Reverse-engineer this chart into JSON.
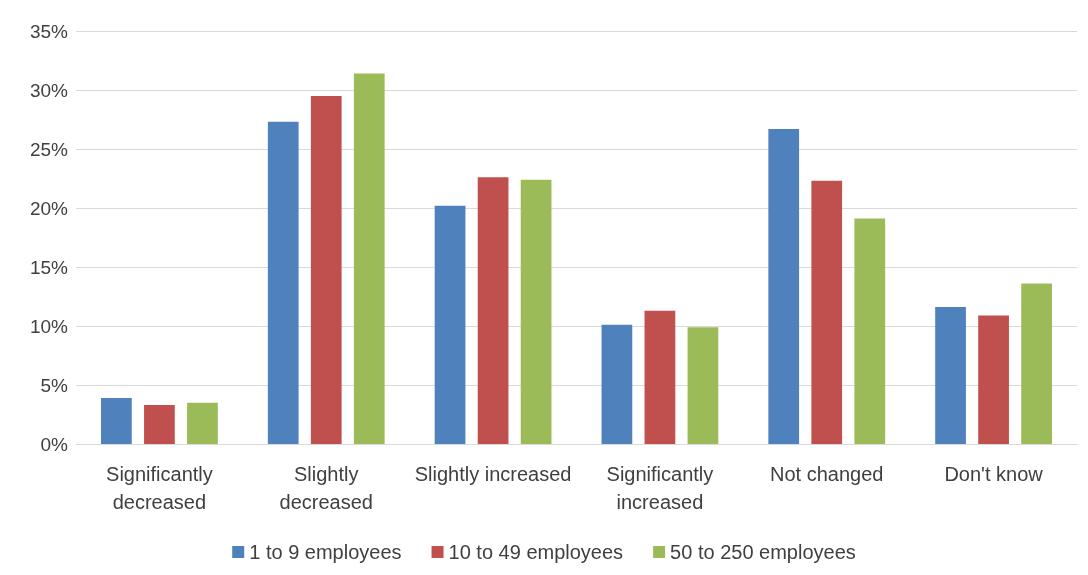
{
  "chart_data": {
    "type": "bar",
    "categories": [
      "Significantly\ndecreased",
      "Slightly\ndecreased",
      "Slightly increased",
      "Significantly\nincreased",
      "Not changed",
      "Don't know"
    ],
    "series": [
      {
        "name": "1 to 9 employees",
        "color": "#4f81bd",
        "values": [
          3.9,
          27.3,
          20.2,
          10.1,
          26.7,
          11.6
        ]
      },
      {
        "name": "10 to 49 employees",
        "color": "#c0504d",
        "values": [
          3.3,
          29.5,
          22.6,
          11.3,
          22.3,
          10.9
        ]
      },
      {
        "name": "50 to 250 employees",
        "color": "#9bbb59",
        "values": [
          3.5,
          31.4,
          22.4,
          9.9,
          19.1,
          13.6
        ]
      }
    ],
    "ylim": [
      0,
      35
    ],
    "yticks": [
      {
        "value": 0,
        "label": "0%"
      },
      {
        "value": 5,
        "label": "5%"
      },
      {
        "value": 10,
        "label": "10%"
      },
      {
        "value": 15,
        "label": "15%"
      },
      {
        "value": 20,
        "label": "20%"
      },
      {
        "value": 25,
        "label": "25%"
      },
      {
        "value": 30,
        "label": "30%"
      },
      {
        "value": 35,
        "label": "35%"
      }
    ],
    "grid": "y",
    "legend": "bottom"
  }
}
